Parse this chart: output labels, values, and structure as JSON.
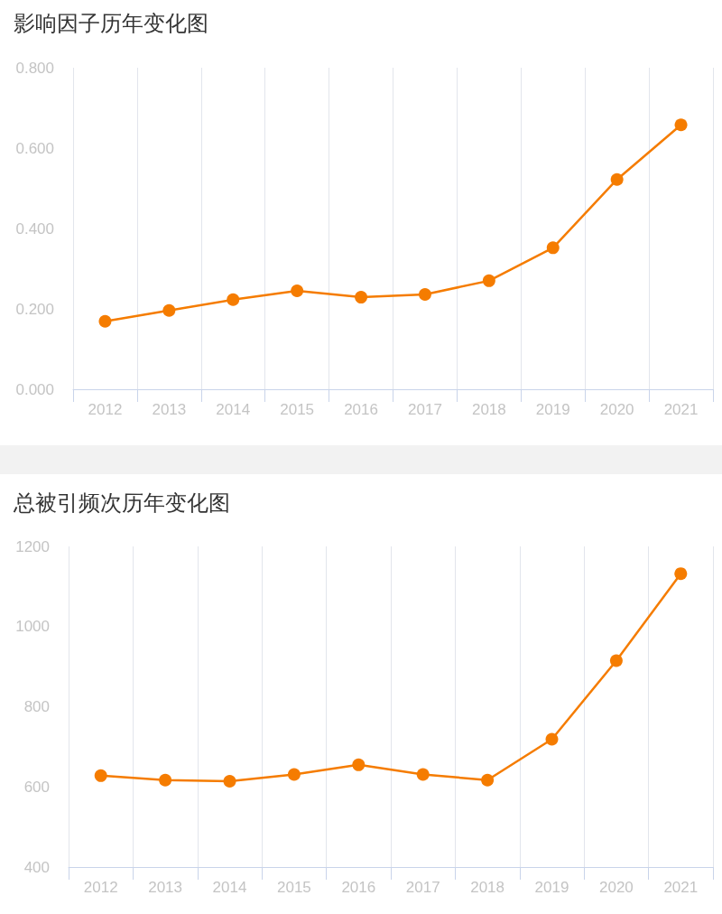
{
  "chart_data": [
    {
      "type": "line",
      "title": "影响因子历年变化图",
      "categories": [
        "2012",
        "2013",
        "2014",
        "2015",
        "2016",
        "2017",
        "2018",
        "2019",
        "2020",
        "2021"
      ],
      "series": [
        {
          "color": "#f57c00",
          "values": [
            0.169,
            0.196,
            0.223,
            0.245,
            0.229,
            0.236,
            0.27,
            0.352,
            0.522,
            0.658
          ]
        }
      ],
      "ylim": [
        0,
        0.8
      ],
      "yticks": [
        {
          "value": 0,
          "label": "0.000"
        },
        {
          "value": 0.2,
          "label": "0.200"
        },
        {
          "value": 0.4,
          "label": "0.400"
        },
        {
          "value": 0.6,
          "label": "0.600"
        },
        {
          "value": 0.8,
          "label": "0.800"
        }
      ],
      "grid": "x",
      "marker": "circle",
      "line_style": "solid"
    },
    {
      "type": "line",
      "title": "总被引频次历年变化图",
      "categories": [
        "2012",
        "2013",
        "2014",
        "2015",
        "2016",
        "2017",
        "2018",
        "2019",
        "2020",
        "2021"
      ],
      "series": [
        {
          "color": "#f57c00",
          "values": [
            628,
            617,
            614,
            631,
            655,
            631,
            617,
            719,
            915,
            1132
          ]
        }
      ],
      "ylim": [
        400,
        1200
      ],
      "yticks": [
        400,
        600,
        800,
        1000,
        1200
      ],
      "grid": "x",
      "marker": "circle",
      "line_style": "solid"
    }
  ]
}
